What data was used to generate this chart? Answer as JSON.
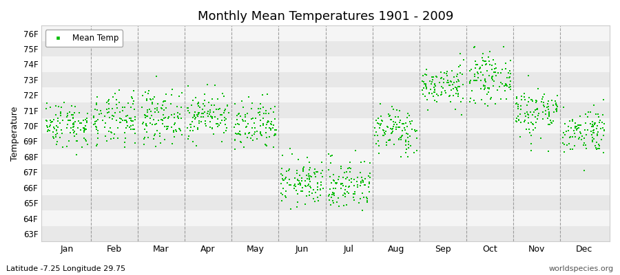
{
  "title": "Monthly Mean Temperatures 1901 - 2009",
  "ylabel": "Temperature",
  "xlabel_labels": [
    "Jan",
    "Feb",
    "Mar",
    "Apr",
    "May",
    "Jun",
    "Jul",
    "Aug",
    "Sep",
    "Oct",
    "Nov",
    "Dec"
  ],
  "ytick_labels": [
    "63F",
    "64F",
    "65F",
    "66F",
    "67F",
    "68F",
    "69F",
    "70F",
    "71F",
    "72F",
    "73F",
    "74F",
    "75F",
    "76F"
  ],
  "ytick_values": [
    63,
    64,
    65,
    66,
    67,
    68,
    69,
    70,
    71,
    72,
    73,
    74,
    75,
    76
  ],
  "ylim": [
    62.5,
    76.5
  ],
  "legend_label": "Mean Temp",
  "dot_color": "#00bb00",
  "bg_color": "#ffffff",
  "stripe_colors": [
    "#e8e8e8",
    "#f5f5f5"
  ],
  "bottom_left_text": "Latitude -7.25 Longitude 29.75",
  "bottom_right_text": "worldspecies.org",
  "n_years": 109,
  "monthly_means": [
    70.1,
    70.3,
    70.6,
    70.7,
    69.9,
    66.3,
    66.2,
    69.7,
    72.6,
    73.1,
    70.9,
    69.7
  ],
  "monthly_stds": [
    0.75,
    0.85,
    0.85,
    0.75,
    0.85,
    0.75,
    0.85,
    0.75,
    0.65,
    0.75,
    0.85,
    0.75
  ]
}
